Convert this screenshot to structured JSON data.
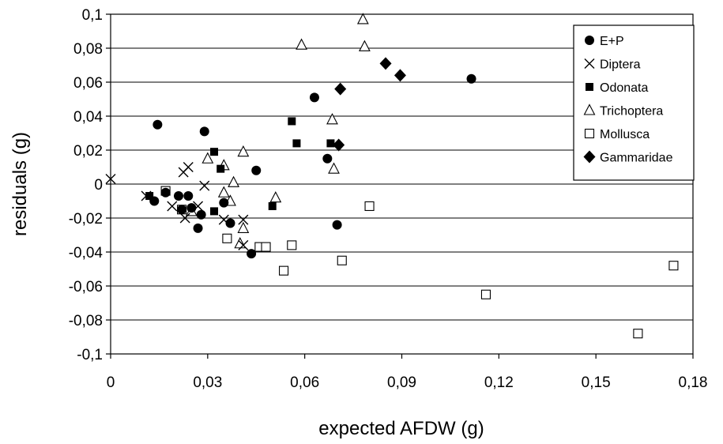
{
  "chart_data": {
    "type": "scatter",
    "xlabel": "expected AFDW (g)",
    "ylabel": "residuals (g)",
    "xlim": [
      0,
      0.18
    ],
    "ylim": [
      -0.1,
      0.1
    ],
    "x_ticks": [
      "0",
      "0,03",
      "0,06",
      "0,09",
      "0,12",
      "0,15",
      "0,18"
    ],
    "y_ticks": [
      "-0,1",
      "-0,08",
      "-0,06",
      "-0,04",
      "-0,02",
      "0",
      "0,02",
      "0,04",
      "0,06",
      "0,08",
      "0,1"
    ],
    "grid": "horizontal",
    "legend_position": "top-right",
    "series": [
      {
        "name": "E+P",
        "marker": "circle-filled",
        "points": [
          [
            0.0135,
            -0.01
          ],
          [
            0.0145,
            0.035
          ],
          [
            0.017,
            -0.005
          ],
          [
            0.021,
            -0.007
          ],
          [
            0.022,
            -0.015
          ],
          [
            0.024,
            -0.007
          ],
          [
            0.025,
            -0.014
          ],
          [
            0.027,
            -0.026
          ],
          [
            0.028,
            -0.018
          ],
          [
            0.029,
            0.031
          ],
          [
            0.035,
            -0.011
          ],
          [
            0.037,
            -0.023
          ],
          [
            0.0435,
            -0.041
          ],
          [
            0.045,
            0.008
          ],
          [
            0.063,
            0.051
          ],
          [
            0.067,
            0.015
          ],
          [
            0.07,
            -0.024
          ],
          [
            0.1115,
            0.062
          ]
        ]
      },
      {
        "name": "Diptera",
        "marker": "cross",
        "points": [
          [
            0.0,
            0.003
          ],
          [
            0.011,
            -0.007
          ],
          [
            0.019,
            -0.013
          ],
          [
            0.0225,
            0.007
          ],
          [
            0.023,
            -0.02
          ],
          [
            0.024,
            0.01
          ],
          [
            0.027,
            -0.013
          ],
          [
            0.029,
            -0.001
          ],
          [
            0.035,
            -0.021
          ],
          [
            0.041,
            -0.021
          ],
          [
            0.041,
            -0.036
          ]
        ]
      },
      {
        "name": "Odonata",
        "marker": "square-filled",
        "points": [
          [
            0.012,
            -0.007
          ],
          [
            0.032,
            0.019
          ],
          [
            0.032,
            -0.016
          ],
          [
            0.034,
            0.009
          ],
          [
            0.05,
            -0.013
          ],
          [
            0.056,
            0.037
          ],
          [
            0.0575,
            0.024
          ],
          [
            0.068,
            0.024
          ]
        ]
      },
      {
        "name": "Trichoptera",
        "marker": "triangle-open",
        "points": [
          [
            0.025,
            -0.016
          ],
          [
            0.03,
            0.015
          ],
          [
            0.035,
            0.011
          ],
          [
            0.035,
            -0.005
          ],
          [
            0.037,
            -0.01
          ],
          [
            0.038,
            0.001
          ],
          [
            0.04,
            -0.035
          ],
          [
            0.041,
            0.019
          ],
          [
            0.041,
            -0.026
          ],
          [
            0.051,
            -0.008
          ],
          [
            0.059,
            0.082
          ],
          [
            0.0685,
            0.038
          ],
          [
            0.069,
            0.009
          ],
          [
            0.078,
            0.097
          ],
          [
            0.0785,
            0.081
          ]
        ]
      },
      {
        "name": "Mollusca",
        "marker": "square-open",
        "points": [
          [
            0.017,
            -0.004
          ],
          [
            0.022,
            -0.015
          ],
          [
            0.036,
            -0.032
          ],
          [
            0.046,
            -0.037
          ],
          [
            0.048,
            -0.037
          ],
          [
            0.0535,
            -0.051
          ],
          [
            0.056,
            -0.036
          ],
          [
            0.0715,
            -0.045
          ],
          [
            0.08,
            -0.013
          ],
          [
            0.116,
            -0.065
          ],
          [
            0.163,
            -0.088
          ],
          [
            0.174,
            -0.048
          ]
        ]
      },
      {
        "name": "Gammaridae",
        "marker": "diamond-filled",
        "points": [
          [
            0.0705,
            0.023
          ],
          [
            0.071,
            0.056
          ],
          [
            0.085,
            0.071
          ],
          [
            0.0895,
            0.064
          ]
        ]
      }
    ]
  }
}
